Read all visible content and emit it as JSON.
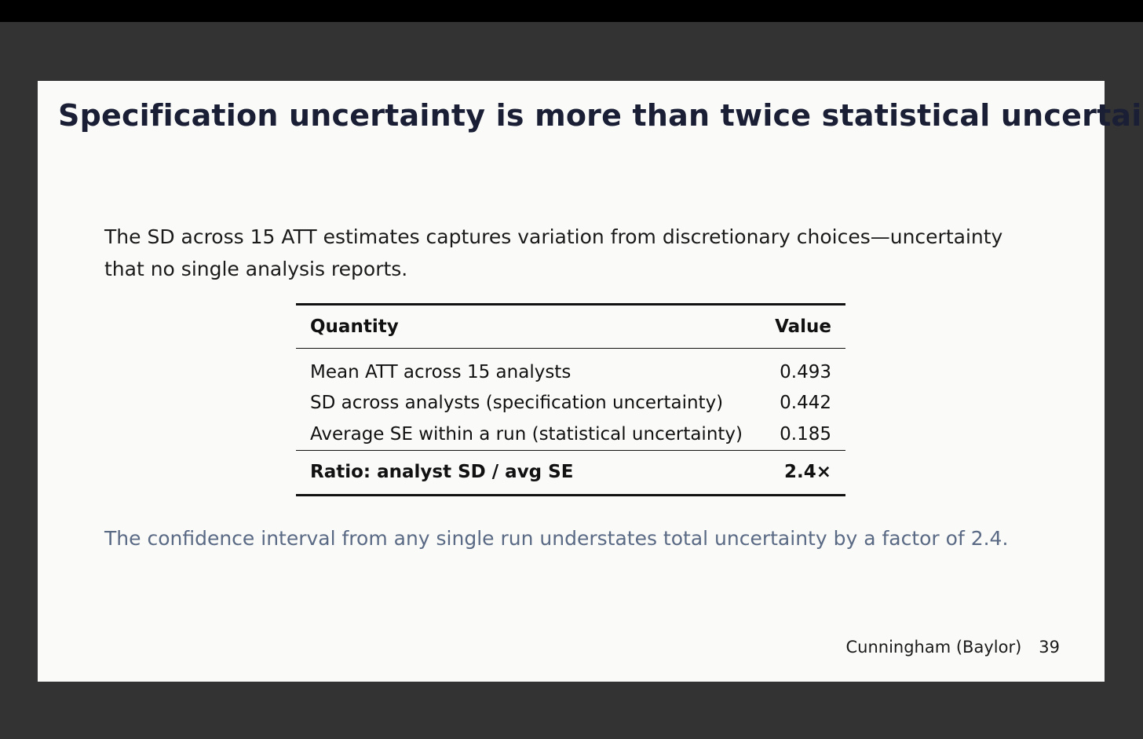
{
  "slide": {
    "title": "Specification uncertainty is more than twice statistical uncertainty",
    "lead_text": "The SD across 15 ATT estimates captures variation from discretionary choices—uncertainty that no single analysis reports.",
    "table": {
      "headers": [
        "Quantity",
        "Value"
      ],
      "rows": [
        {
          "quantity": "Mean ATT across 15 analysts",
          "value": "0.493"
        },
        {
          "quantity": "SD across analysts (specification uncertainty)",
          "value": "0.442"
        },
        {
          "quantity": "Average SE within a run (statistical uncertainty)",
          "value": "0.185"
        }
      ],
      "summary": {
        "quantity": "Ratio: analyst SD / avg SE",
        "value": "2.4×"
      }
    },
    "conclusion": "The confidence interval from any single run understates total uncertainty by a factor of 2.4.",
    "footer": {
      "author": "Cunningham (Baylor)",
      "page": "39"
    }
  }
}
